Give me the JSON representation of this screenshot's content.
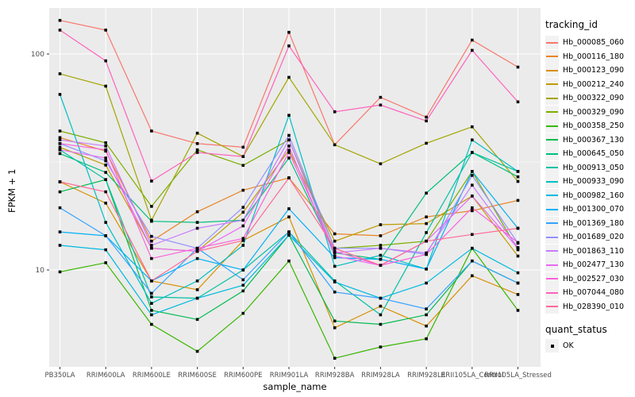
{
  "figure": {
    "background": "#FFFFFF",
    "panel_background": "#EBEBEB",
    "gridline_color": "#FFFFFF",
    "tick_text_color": "#4D4D4D",
    "point_color": "#000000"
  },
  "chart_data": {
    "type": "line",
    "title": "",
    "xlabel": "sample_name",
    "ylabel": "FPKM + 1",
    "y_scale": "log10",
    "y_ticks": [
      100,
      10
    ],
    "ylim": [
      3.5,
      165
    ],
    "grid": "on",
    "legend_position": "right",
    "point_shape": "filled-square",
    "categories": [
      "PB350LA",
      "RRIM600LA",
      "RRIM600LE",
      "RRIM600SE",
      "RRIM600PE",
      "RRIM901LA",
      "RRIM928BA",
      "RRIM928LA",
      "RRIM928LE",
      "RRII105LA_Control",
      "RRII105LA_Stressed"
    ],
    "series": [
      {
        "name": "Hb_000085_060",
        "color": "#F8766D",
        "values": [
          143,
          129,
          44,
          38.5,
          37,
          126,
          38,
          63,
          51,
          116,
          87
        ]
      },
      {
        "name": "Hb_000116_180",
        "color": "#E88526",
        "values": [
          41,
          35.5,
          13.6,
          18.6,
          23.4,
          26.7,
          14.7,
          14.4,
          17.6,
          18.8,
          21
        ]
      },
      {
        "name": "Hb_000123_090",
        "color": "#D89000",
        "values": [
          25.6,
          20.4,
          8.9,
          8.1,
          13.7,
          17.6,
          5.4,
          6.8,
          5.5,
          9.4,
          7.7
        ]
      },
      {
        "name": "Hb_000212_240",
        "color": "#C09B00",
        "values": [
          37,
          30.6,
          12.6,
          12.2,
          18.5,
          35.8,
          13.6,
          16.2,
          16.4,
          22,
          11.6
        ]
      },
      {
        "name": "Hb_000322_090",
        "color": "#A3A500",
        "values": [
          81,
          71,
          17,
          43,
          33.5,
          78,
          38,
          31,
          38.6,
          46,
          25.7
        ]
      },
      {
        "name": "Hb_000329_090",
        "color": "#7CAE00",
        "values": [
          44,
          38.8,
          19.7,
          36,
          30.5,
          40,
          12.6,
          13,
          13.6,
          28.6,
          12.4
        ]
      },
      {
        "name": "Hb_000358_250",
        "color": "#39B600",
        "values": [
          9.8,
          10.8,
          5.6,
          4.2,
          6.3,
          11,
          3.9,
          4.4,
          4.8,
          12.6,
          6.5
        ]
      },
      {
        "name": "Hb_000367_130",
        "color": "#00BB4E",
        "values": [
          23,
          26.2,
          6.5,
          5.9,
          8,
          14.5,
          5.8,
          5.6,
          6.2,
          11,
          8.7
        ]
      },
      {
        "name": "Hb_000645_050",
        "color": "#00BF7D",
        "values": [
          34.6,
          28.3,
          16.8,
          16.6,
          17,
          33,
          12,
          11.2,
          22.7,
          35,
          27
        ]
      },
      {
        "name": "Hb_000913_050",
        "color": "#00C1A3",
        "values": [
          36,
          26.2,
          7.5,
          7.4,
          10,
          15,
          8.9,
          6.2,
          14.9,
          35,
          28.6
        ]
      },
      {
        "name": "Hb_000933_090",
        "color": "#00BFC4",
        "values": [
          65,
          16.6,
          7,
          8.9,
          13,
          52,
          10.4,
          11.7,
          10.1,
          40,
          28.6
        ]
      },
      {
        "name": "Hb_000982_160",
        "color": "#00BAE0",
        "values": [
          13,
          12.4,
          6.2,
          7.4,
          8.5,
          14.5,
          8.8,
          7.4,
          8.7,
          12.6,
          9.7
        ]
      },
      {
        "name": "Hb_001300_070",
        "color": "#00B0F6",
        "values": [
          15,
          14.4,
          8.9,
          11.3,
          10,
          19.2,
          11.4,
          11.2,
          10.1,
          28.6,
          15.6
        ]
      },
      {
        "name": "Hb_001369_180",
        "color": "#35A2FF",
        "values": [
          19.4,
          14.4,
          7.8,
          12.6,
          9,
          15,
          7.9,
          7.4,
          6.6,
          11,
          8.7
        ]
      },
      {
        "name": "Hb_001689_020",
        "color": "#9590FF",
        "values": [
          38.5,
          32,
          14.3,
          12.6,
          19.5,
          42,
          12.6,
          12.6,
          11.8,
          27.4,
          13.3
        ]
      },
      {
        "name": "Hb_001863_110",
        "color": "#C77CFF",
        "values": [
          40,
          37.5,
          13,
          15.6,
          17,
          40,
          12,
          12.6,
          12,
          24.7,
          12.7
        ]
      },
      {
        "name": "Hb_002477_130",
        "color": "#E76BF3",
        "values": [
          36,
          33,
          12.6,
          12.2,
          16,
          37.5,
          11.6,
          10.5,
          13.6,
          22,
          12.6
        ]
      },
      {
        "name": "Hb_002527_030",
        "color": "#FA62DB",
        "values": [
          38.5,
          36,
          11.3,
          12.6,
          14,
          35,
          12.2,
          10.5,
          11.8,
          19.4,
          13.4
        ]
      },
      {
        "name": "Hb_007044_080",
        "color": "#FF62BC",
        "values": [
          129,
          93,
          25.8,
          35,
          33.5,
          109,
          54,
          58,
          49,
          104,
          60
        ]
      },
      {
        "name": "Hb_028390_010",
        "color": "#FF6A98",
        "values": [
          25.6,
          23,
          8.9,
          12.2,
          13.7,
          26.7,
          12.6,
          10.5,
          13.6,
          14.6,
          15.6
        ]
      }
    ],
    "legend": {
      "series_title": "tracking_id",
      "shape_title": "quant_status",
      "shape_label": "OK",
      "shape": "filled-square"
    }
  }
}
